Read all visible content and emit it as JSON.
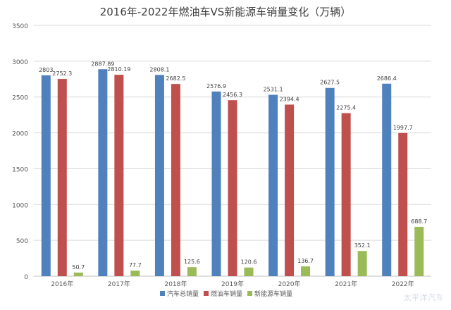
{
  "chart_data": {
    "type": "bar",
    "title": "2016年-2022年燃油车VS新能源车销量变化（万辆）",
    "categories": [
      "2016年",
      "2017年",
      "2018年",
      "2019年",
      "2020年",
      "2021年",
      "2022年"
    ],
    "ylim": [
      0,
      3500
    ],
    "yticks": [
      0,
      500,
      1000,
      1500,
      2000,
      2500,
      3000,
      3500
    ],
    "grid": true,
    "legend": "bottom",
    "series": [
      {
        "name": "汽车总销量",
        "color": "#4f81bd",
        "values": [
          2803,
          2887.89,
          2808.1,
          2576.9,
          2531.1,
          2627.5,
          2686.4
        ],
        "labels": [
          "2803",
          "2887.89",
          "2808.1",
          "2576.9",
          "2531.1",
          "2627.5",
          "2686.4"
        ]
      },
      {
        "name": "燃油车销量",
        "color": "#c0504d",
        "values": [
          2752.3,
          2810.19,
          2682.5,
          2456.3,
          2394.4,
          2275.4,
          1997.7
        ],
        "labels": [
          "2752.3",
          "2810.19",
          "2682.5",
          "2456.3",
          "2394.4",
          "2275.4",
          "1997.7"
        ]
      },
      {
        "name": "新能源车销量",
        "color": "#9bbb59",
        "values": [
          50.7,
          77.7,
          125.6,
          120.6,
          136.7,
          352.1,
          688.7
        ],
        "labels": [
          "50.7",
          "77.7",
          "125.6",
          "120.6",
          "136.7",
          "352.1",
          "688.7"
        ]
      }
    ]
  },
  "watermark": "太平洋汽车"
}
